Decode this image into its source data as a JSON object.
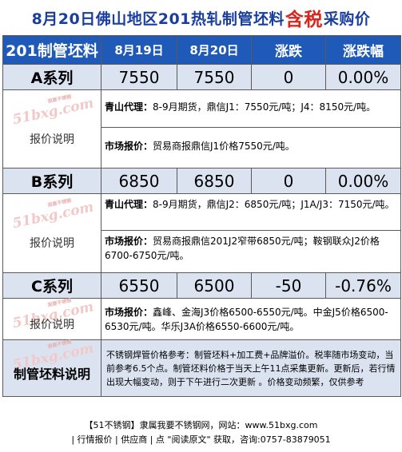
{
  "title": {
    "pre": "8月20日佛山地区201热轧制管坯料",
    "highlight": "含税",
    "post": "采购价"
  },
  "header": {
    "c1": "201制管坯料",
    "c2": "8月19日",
    "c3": "8月20日",
    "c4": "涨跌",
    "c5": "涨跌幅"
  },
  "label_text": "报价说明",
  "watermark": {
    "text": "51bxg.com",
    "small": "我要不锈钢"
  },
  "rows": [
    {
      "name": "A系列",
      "prev": "7550",
      "curr": "7550",
      "change": "0",
      "pct": "0.00%",
      "notes": [
        {
          "key": "青山代理：",
          "text": "8-9月期货，鼎信J1：7550元/吨；J4：8150元/吨。"
        },
        {
          "key": "市场报价：",
          "text": "贸易商报鼎信J1价格7550元/吨。"
        }
      ]
    },
    {
      "name": "B系列",
      "prev": "6850",
      "curr": "6850",
      "change": "0",
      "pct": "0.00%",
      "notes": [
        {
          "key": "青山代理：",
          "text": "8-9月期货，鼎信J2：6850元/吨；J1A/J3：7150元/吨。"
        },
        {
          "key": "市场报价：",
          "text": "贸易商报鼎信201J2窄带6850元/吨；鞍钢联众J2价格6700-6750元/吨。"
        }
      ]
    },
    {
      "name": "C系列",
      "prev": "6550",
      "curr": "6500",
      "change": "-50",
      "pct": "-0.76%",
      "notes": [
        {
          "key": "市场报价：",
          "text": "鑫峰、金海J3价格6500-6550元/吨。中金J5价格6500-6530元/吨。华乐J3A价格6550-6600元/吨。"
        }
      ]
    }
  ],
  "explain": {
    "label": "制管坯料说明",
    "text": "不锈钢焊管价格参考：制管坯料+加工费+品牌溢价。税率随市场变动，当前参考6.5个点。制管坯料价格于当天上午11点采集更新。更新后，若行情出现大幅变动，则于下午进行二次更新 。价格变动频繁，仅供参考"
  },
  "footer": {
    "line1": "【51不锈钢】隶属我要不锈钢网，网站：www.51bxg.com",
    "line2": "| 行情报价 | 供应商 | 点 \"阅读原文\" 获取，咨询:0757-83879051"
  }
}
